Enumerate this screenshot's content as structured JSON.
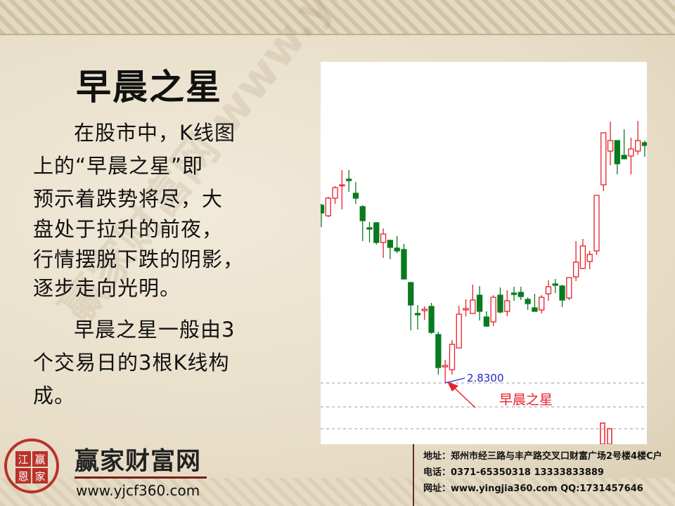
{
  "slide": {
    "title": "早晨之星",
    "paragraph1": [
      "在股市中，K线图",
      "上的“早晨之星”即",
      "预示着跌势将尽，大",
      "盘处于拉升的前夜，",
      "行情摆脱下跌的阴影，",
      "逐步走向光明。"
    ],
    "paragraph2": [
      "早晨之星一般由3",
      "个交易日的3根K线构",
      "成。"
    ],
    "watermark": "赢家财富网 www.yingjia360.com"
  },
  "chart": {
    "price_label": "2.8300",
    "annotation": "早晨之星",
    "colors": {
      "up": "#e8202a",
      "down": "#0a7a1e",
      "price_label": "#2222cc",
      "grid": "#999999"
    },
    "candles_ohlc": [
      [
        5.36,
        5.38,
        5.05,
        5.25
      ],
      [
        5.21,
        5.48,
        5.19,
        5.46
      ],
      [
        5.46,
        5.63,
        5.38,
        5.61
      ],
      [
        5.64,
        5.86,
        5.3,
        5.65
      ],
      [
        5.73,
        5.86,
        5.55,
        5.71
      ],
      [
        5.53,
        5.69,
        5.38,
        5.46
      ],
      [
        5.34,
        5.36,
        4.85,
        5.14
      ],
      [
        5.04,
        5.12,
        4.83,
        5.02
      ],
      [
        5.11,
        5.12,
        4.8,
        4.83
      ],
      [
        4.83,
        5.03,
        4.61,
        4.95
      ],
      [
        4.86,
        4.87,
        4.59,
        4.76
      ],
      [
        4.75,
        4.92,
        4.68,
        4.71
      ],
      [
        4.73,
        4.81,
        4.31,
        4.31
      ],
      [
        4.26,
        4.26,
        3.58,
        3.94
      ],
      [
        3.82,
        3.94,
        3.59,
        3.8
      ],
      [
        3.86,
        3.92,
        3.73,
        3.88
      ],
      [
        3.92,
        3.97,
        3.53,
        3.55
      ],
      [
        3.52,
        3.56,
        2.95,
        3.05
      ],
      [
        3.06,
        3.16,
        2.83,
        3.08
      ],
      [
        3.02,
        3.44,
        2.95,
        3.38
      ],
      [
        3.33,
        3.93,
        3.33,
        3.81
      ],
      [
        3.87,
        4.02,
        3.78,
        3.89
      ],
      [
        3.82,
        4.23,
        3.82,
        4.01
      ],
      [
        4.08,
        4.21,
        3.72,
        3.85
      ],
      [
        3.77,
        3.85,
        3.63,
        3.64
      ],
      [
        3.7,
        4.08,
        3.64,
        4.05
      ],
      [
        4.08,
        4.19,
        3.82,
        3.84
      ],
      [
        3.85,
        4.15,
        3.78,
        4.0
      ],
      [
        4.11,
        4.2,
        4.0,
        4.09
      ],
      [
        4.12,
        4.2,
        4.01,
        4.06
      ],
      [
        4.02,
        4.05,
        3.87,
        3.96
      ],
      [
        3.9,
        4.1,
        3.85,
        3.85
      ],
      [
        3.87,
        4.08,
        3.82,
        4.05
      ],
      [
        4.1,
        4.29,
        4.0,
        4.2
      ],
      [
        4.24,
        4.31,
        4.11,
        4.22
      ],
      [
        4.21,
        4.23,
        3.91,
        4.01
      ],
      [
        4.04,
        4.33,
        4.01,
        4.33
      ],
      [
        4.34,
        4.85,
        4.28,
        4.55
      ],
      [
        4.46,
        4.88,
        4.45,
        4.78
      ],
      [
        4.56,
        4.71,
        4.45,
        4.66
      ],
      [
        4.71,
        5.5,
        4.65,
        5.5
      ],
      [
        5.65,
        6.39,
        5.56,
        6.39
      ],
      [
        6.13,
        6.55,
        5.93,
        6.28
      ],
      [
        6.28,
        6.28,
        5.8,
        5.95
      ],
      [
        6.07,
        6.44,
        6.02,
        6.02
      ],
      [
        6.06,
        6.32,
        5.8,
        6.16
      ],
      [
        6.13,
        6.56,
        6.08,
        6.28
      ],
      [
        6.25,
        6.28,
        6.05,
        6.21
      ]
    ]
  },
  "footer": {
    "brand": "赢家财富网",
    "brand_url": "www.yjcf360.com",
    "seal_chars": [
      "江",
      "赢",
      "恩",
      "家"
    ],
    "address": "地址：郑州市经三路与丰产路交叉口财富广场2号楼4楼C户",
    "phone": "电话：0371-65350318  13333833889",
    "website": "网址：www.yingjia360.com  QQ:1731457646"
  }
}
